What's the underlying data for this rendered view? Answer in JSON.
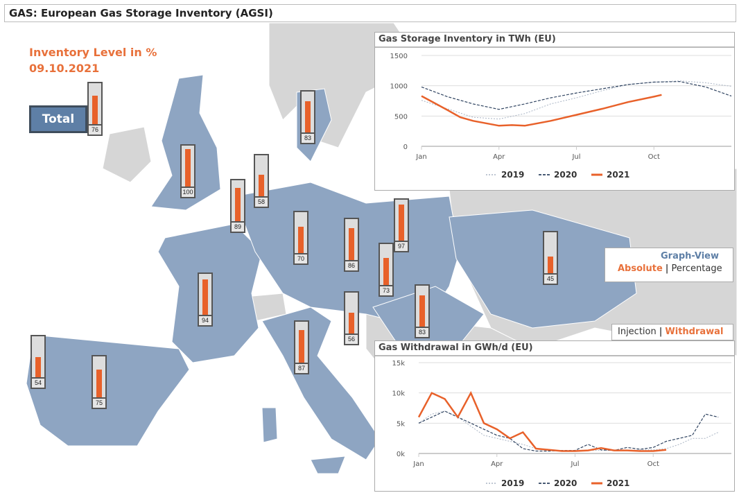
{
  "title": "GAS: European Gas Storage Inventory (AGSI)",
  "heading": {
    "line1": "Inventory Level in %",
    "line2": "09.10.2021"
  },
  "total_button": "Total",
  "colors": {
    "accent": "#e8612a",
    "eu": "#8ea5c2",
    "noneu": "#d6d6d6",
    "y2019": "#a9b4c4",
    "y2020": "#2f4360",
    "y2021": "#e8612a"
  },
  "gauges": [
    {
      "name": "total",
      "value": 76
    },
    {
      "name": "uk",
      "value": 100
    },
    {
      "name": "denmark",
      "value": 83
    },
    {
      "name": "belgium",
      "value": 89
    },
    {
      "name": "netherlands",
      "value": 58
    },
    {
      "name": "germany",
      "value": 70
    },
    {
      "name": "czechia",
      "value": 86
    },
    {
      "name": "poland",
      "value": 97
    },
    {
      "name": "slovakia",
      "value": 73
    },
    {
      "name": "france",
      "value": 94
    },
    {
      "name": "croatia",
      "value": 56
    },
    {
      "name": "hungary-romania",
      "value": 83
    },
    {
      "name": "italy",
      "value": 87
    },
    {
      "name": "portugal",
      "value": 54
    },
    {
      "name": "spain",
      "value": 75
    },
    {
      "name": "ukraine",
      "value": 45
    }
  ],
  "graph_view": {
    "label": "Graph-View",
    "absolute": "Absolute",
    "sep": "|",
    "percentage": "Percentage"
  },
  "flow_switch": {
    "injection": "Injection",
    "sep": "|",
    "withdrawal": "Withdrawal"
  },
  "chart_data": [
    {
      "type": "line",
      "title": "Gas Storage Inventory in TWh (EU)",
      "ylim": [
        0,
        1500
      ],
      "yticks": [
        "0",
        "500",
        "1000",
        "1500"
      ],
      "xticks": [
        "Jan",
        "Apr",
        "Jul",
        "Oct"
      ],
      "x_unit": "month index (0=Jan 1)",
      "series": [
        {
          "name": "2019",
          "x": [
            0,
            1,
            2,
            3,
            4,
            5,
            6,
            7,
            8,
            9,
            10,
            11,
            12
          ],
          "values": [
            760,
            620,
            480,
            450,
            540,
            700,
            800,
            920,
            1020,
            1060,
            1080,
            1050,
            990
          ]
        },
        {
          "name": "2020",
          "x": [
            0,
            1,
            2,
            3,
            4,
            5,
            6,
            7,
            8,
            9,
            10,
            11,
            12
          ],
          "values": [
            980,
            820,
            700,
            610,
            700,
            800,
            880,
            950,
            1020,
            1060,
            1070,
            980,
            830
          ]
        },
        {
          "name": "2021",
          "x": [
            0,
            1,
            1.5,
            2,
            3,
            3.5,
            4,
            5,
            6,
            7,
            8,
            9,
            9.3
          ],
          "values": [
            830,
            600,
            480,
            420,
            340,
            350,
            340,
            420,
            520,
            620,
            730,
            820,
            850
          ]
        }
      ]
    },
    {
      "type": "line",
      "title": "Gas Withdrawal in GWh/d (EU)",
      "ylim": [
        0,
        15000
      ],
      "yticks": [
        "0k",
        "5k",
        "10k",
        "15k"
      ],
      "xticks": [
        "Jan",
        "Apr",
        "Jul",
        "Oct"
      ],
      "x_unit": "half-month index (0=Jan 1)",
      "series": [
        {
          "name": "2019",
          "values": [
            5000,
            6500,
            7000,
            6000,
            4500,
            3000,
            2500,
            2000,
            1500,
            800,
            500,
            400,
            400,
            500,
            500,
            600,
            500,
            600,
            600,
            800,
            1500,
            2500,
            2500,
            3500
          ]
        },
        {
          "name": "2020",
          "values": [
            5000,
            6000,
            7000,
            6000,
            5000,
            4000,
            3000,
            2500,
            800,
            400,
            400,
            500,
            500,
            1500,
            600,
            500,
            1000,
            700,
            1000,
            2000,
            2500,
            3000,
            6500,
            6000
          ]
        },
        {
          "name": "2021",
          "values": [
            6000,
            10000,
            9000,
            6000,
            10000,
            5000,
            4000,
            2500,
            3500,
            800,
            600,
            400,
            400,
            500,
            900,
            500,
            500,
            400,
            400,
            600
          ]
        }
      ]
    }
  ]
}
